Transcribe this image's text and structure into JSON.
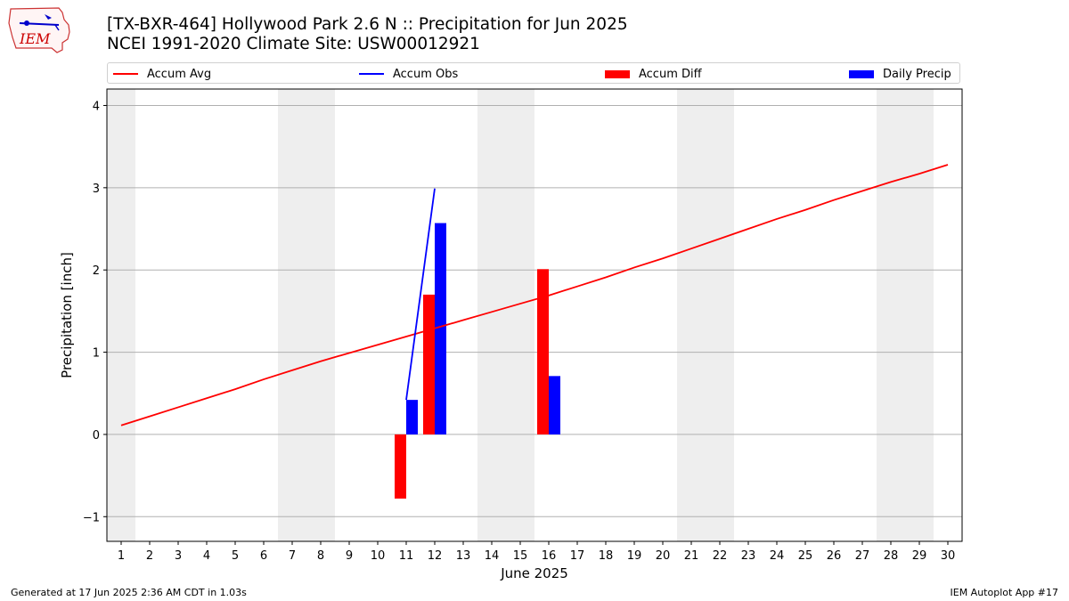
{
  "header": {
    "logo_text": "IEM",
    "title_line1": "[TX-BXR-464] Hollywood Park 2.6 N :: Precipitation for Jun 2025",
    "title_line2": "NCEI 1991-2020 Climate Site: USW00012921"
  },
  "legend": [
    {
      "label": "Accum Avg",
      "kind": "line",
      "color": "#ff0000"
    },
    {
      "label": "Accum Obs",
      "kind": "line",
      "color": "#0000ff"
    },
    {
      "label": "Accum Diff",
      "kind": "box",
      "color": "#ff0000"
    },
    {
      "label": "Daily Precip",
      "kind": "box",
      "color": "#0000ff"
    }
  ],
  "footer": {
    "generated": "Generated at 17 Jun 2025 2:36 AM CDT in 1.03s",
    "app": "IEM Autoplot App #17"
  },
  "chart_data": {
    "type": "bar",
    "xlabel": "June 2025",
    "ylabel": "Precipitation [inch]",
    "xlim": [
      0.5,
      30.5
    ],
    "ylim": [
      -1.3,
      4.2
    ],
    "x_ticks": [
      1,
      2,
      3,
      4,
      5,
      6,
      7,
      8,
      9,
      10,
      11,
      12,
      13,
      14,
      15,
      16,
      17,
      18,
      19,
      20,
      21,
      22,
      23,
      24,
      25,
      26,
      27,
      28,
      29,
      30
    ],
    "y_ticks": [
      -1,
      0,
      1,
      2,
      3,
      4
    ],
    "y_tick_labels": [
      "−1",
      "0",
      "1",
      "2",
      "3",
      "4"
    ],
    "grid": "horizontal",
    "weekend_shading_days": [
      1,
      7,
      8,
      14,
      15,
      21,
      22,
      28,
      29
    ],
    "shading_color": "#eeeeee",
    "series": [
      {
        "name": "Accum Avg",
        "kind": "line",
        "color": "#ff0000",
        "x": [
          1,
          2,
          3,
          4,
          5,
          6,
          7,
          8,
          9,
          10,
          11,
          12,
          13,
          14,
          15,
          16,
          17,
          18,
          19,
          20,
          21,
          22,
          23,
          24,
          25,
          26,
          27,
          28,
          29,
          30
        ],
        "values": [
          0.11,
          0.22,
          0.33,
          0.44,
          0.55,
          0.67,
          0.78,
          0.89,
          0.99,
          1.09,
          1.19,
          1.29,
          1.39,
          1.49,
          1.59,
          1.69,
          1.8,
          1.91,
          2.03,
          2.14,
          2.26,
          2.38,
          2.5,
          2.62,
          2.73,
          2.85,
          2.96,
          3.07,
          3.17,
          3.28
        ]
      },
      {
        "name": "Accum Obs",
        "kind": "line",
        "color": "#0000ff",
        "x": [
          11,
          12
        ],
        "values": [
          0.42,
          2.99
        ]
      },
      {
        "name": "Accum Diff",
        "kind": "bar",
        "color": "#ff0000",
        "x": [
          11,
          12,
          16
        ],
        "values": [
          -0.78,
          1.7,
          2.01
        ]
      },
      {
        "name": "Daily Precip",
        "kind": "bar",
        "color": "#0000ff",
        "x": [
          11,
          12,
          16
        ],
        "values": [
          0.42,
          2.57,
          0.71
        ]
      }
    ]
  }
}
